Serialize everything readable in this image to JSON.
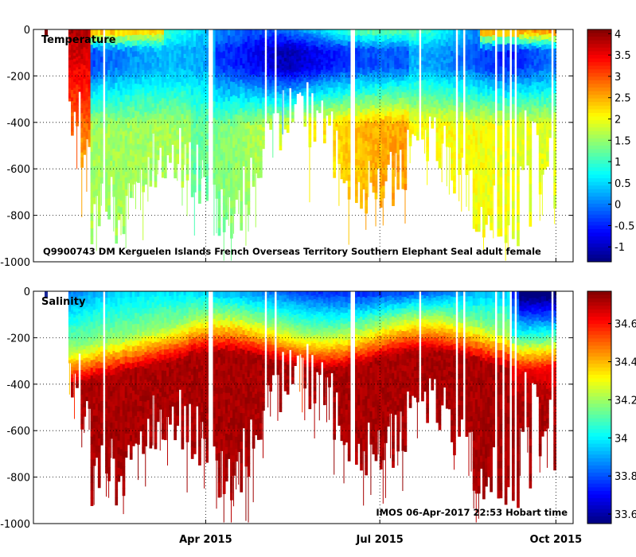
{
  "chart_data": [
    {
      "type": "heatmap",
      "title": "Temperature",
      "annotation": "Q9900743 DM Kerguelen Islands French Overseas Territory Southern Elephant Seal adult female",
      "ylim": [
        -1000,
        0
      ],
      "yticks": [
        "0",
        "-200",
        "-400",
        "-600",
        "-800",
        "-1000"
      ],
      "xticks": [
        {
          "label": "Apr 2015",
          "value": "2015-04-01"
        },
        {
          "label": "Jul 2015",
          "value": "2015-07-01"
        },
        {
          "label": "Oct 2015",
          "value": "2015-10-01"
        }
      ],
      "xlim": [
        "2015-01-01",
        "2015-10-10"
      ],
      "track_start": "2015-01-18",
      "track_end": "2015-10-01",
      "colorbar": {
        "min": -1.35,
        "max": 4.1,
        "ticks": [
          "4",
          "3.5",
          "3",
          "2.5",
          "2",
          "1.5",
          "1",
          "0.5",
          "0",
          "-0.5",
          "-1"
        ]
      },
      "profile": {
        "surface_warm": 3.8,
        "subsurface_min": -0.9,
        "deep": 1.8
      }
    },
    {
      "type": "heatmap",
      "title": "Salinity",
      "annotation": "IMOS 06-Apr-2017 22:53 Hobart time",
      "ylim": [
        -1000,
        0
      ],
      "yticks": [
        "0",
        "-200",
        "-400",
        "-600",
        "-800",
        "-1000"
      ],
      "xticks": [
        {
          "label": "Apr 2015",
          "value": "2015-04-01"
        },
        {
          "label": "Jul 2015",
          "value": "2015-07-01"
        },
        {
          "label": "Oct 2015",
          "value": "2015-10-01"
        }
      ],
      "xlim": [
        "2015-01-01",
        "2015-10-10"
      ],
      "track_start": "2015-01-18",
      "track_end": "2015-10-01",
      "colorbar": {
        "min": 33.55,
        "max": 34.77,
        "ticks": [
          "34.6",
          "34.4",
          "34.2",
          "34",
          "33.8",
          "33.6"
        ]
      },
      "profile": {
        "surface": 33.85,
        "deep": 34.72
      }
    }
  ]
}
